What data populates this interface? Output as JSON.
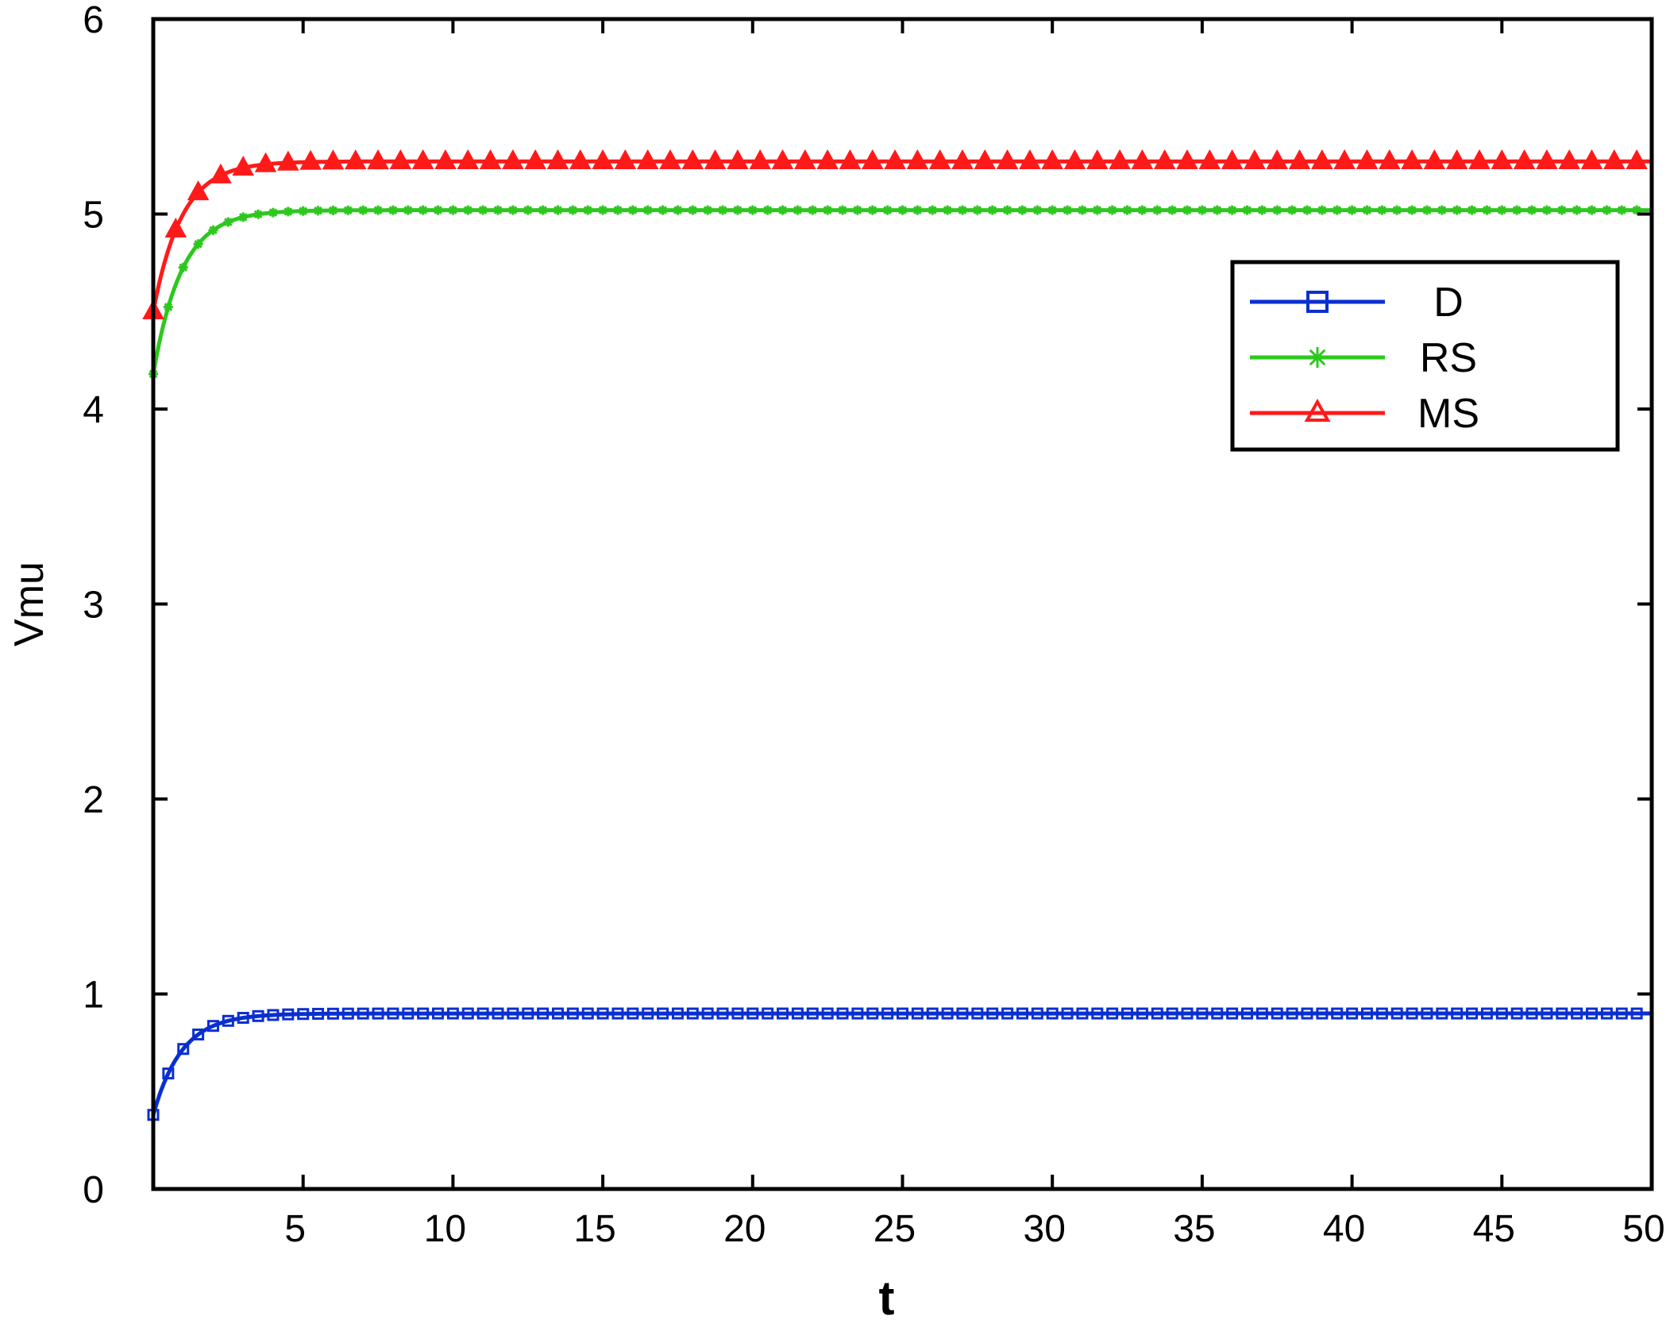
{
  "chart_data": {
    "type": "line",
    "title": "",
    "xlabel": "t",
    "ylabel": "Vmu",
    "xlim": [
      0,
      50
    ],
    "ylim": [
      0,
      6
    ],
    "x_ticks": [
      5,
      10,
      15,
      20,
      25,
      30,
      35,
      40,
      45,
      50
    ],
    "y_ticks": [
      0,
      1,
      2,
      3,
      4,
      5,
      6
    ],
    "grid": false,
    "legend": {
      "position": "upper right",
      "box": true
    },
    "series": [
      {
        "name": "D",
        "color": "#0a2fd0",
        "marker": "square",
        "start": 0.38,
        "steady": 0.9,
        "rate": 1.05
      },
      {
        "name": "RS",
        "color": "#2dc81e",
        "marker": "asterisk",
        "start": 4.18,
        "steady": 5.02,
        "rate": 1.05
      },
      {
        "name": "MS",
        "color": "#ff1a1a",
        "marker": "triangle",
        "start": 4.5,
        "steady": 5.27,
        "rate": 1.05
      }
    ]
  }
}
